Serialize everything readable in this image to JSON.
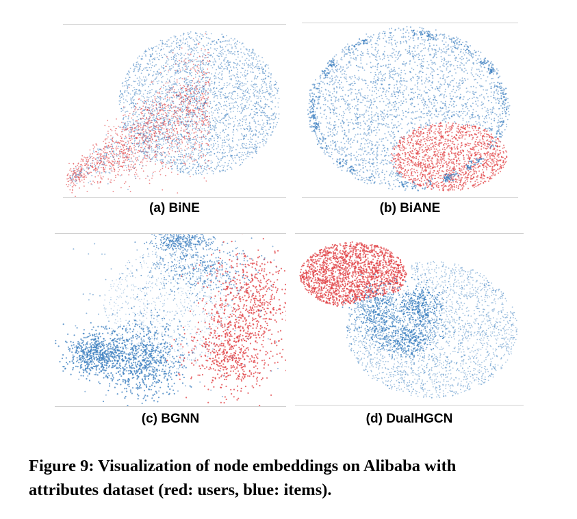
{
  "figure": {
    "caption_line1": "Figure 9: Visualization of node embeddings on Alibaba with",
    "caption_line2": "attributes dataset (red: users, blue: items)."
  },
  "colors": {
    "users": "#e03a3e",
    "items": "#3a7ebf"
  },
  "panels": [
    {
      "id": "a",
      "label": "(a) BiNE"
    },
    {
      "id": "b",
      "label": "(b) BiANE"
    },
    {
      "id": "c",
      "label": "(c) BGNN"
    },
    {
      "id": "d",
      "label": "(d) DualHGCN"
    }
  ]
}
